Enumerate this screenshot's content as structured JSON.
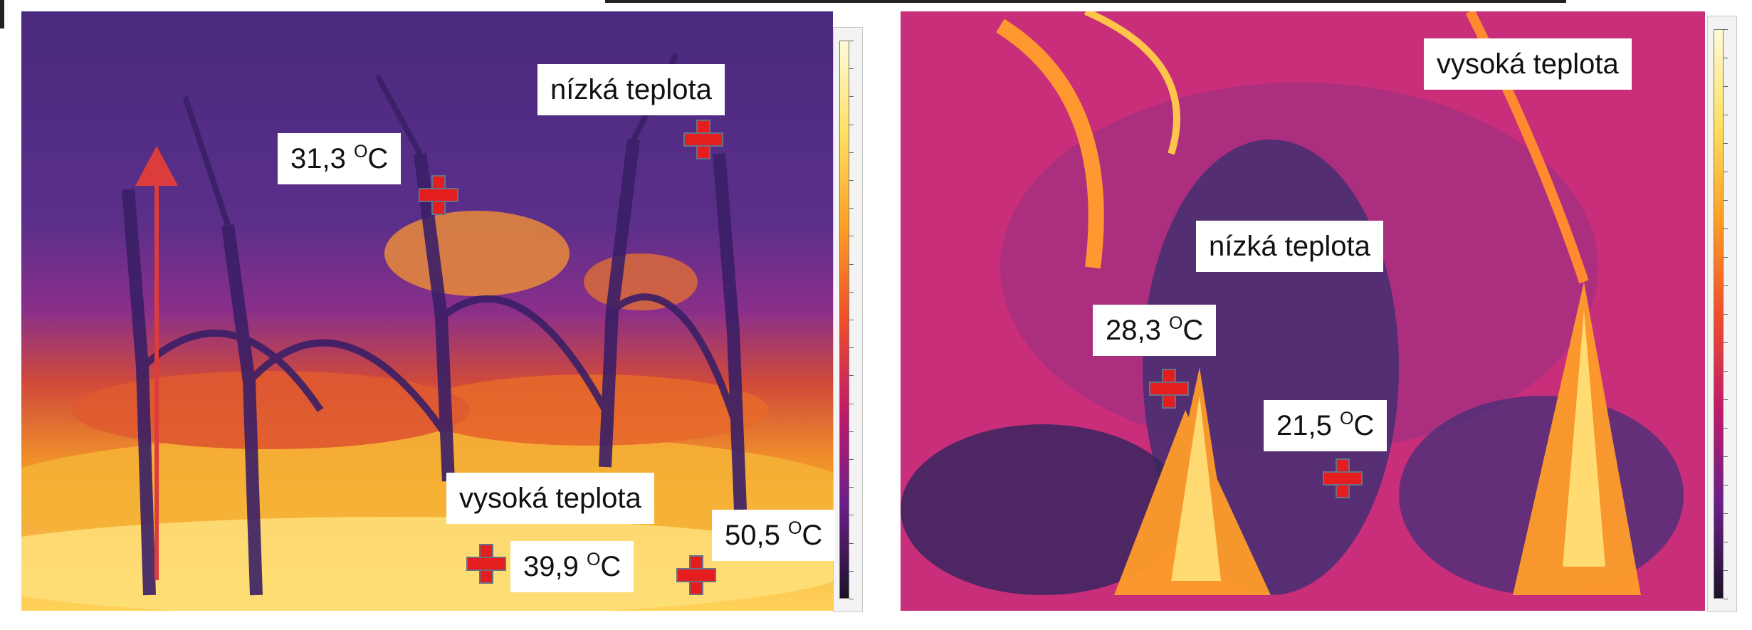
{
  "left_image": {
    "labels": {
      "low_temp": "nízká teplota",
      "high_temp": "vysoká teplota",
      "t_31": {
        "value": "31,3 ",
        "superscript": "O",
        "unit": "C"
      },
      "t_39": {
        "value": "39,9 ",
        "superscript": "O",
        "unit": "C"
      },
      "t_50": {
        "value": "50,5 ",
        "superscript": "O",
        "unit": "C"
      }
    },
    "arrow_icon": "up-arrow-icon"
  },
  "right_image": {
    "labels": {
      "high_temp": "vysoká teplota",
      "low_temp": "nízká teplota",
      "t_28": {
        "value": "28,3 ",
        "superscript": "O",
        "unit": "C"
      },
      "t_21": {
        "value": "21,5 ",
        "superscript": "O",
        "unit": "C"
      }
    }
  },
  "colors": {
    "marker": "#e41e1e",
    "left_background": "#4b2a80",
    "right_background": "#d0307a",
    "hot": "#ffd84a"
  }
}
